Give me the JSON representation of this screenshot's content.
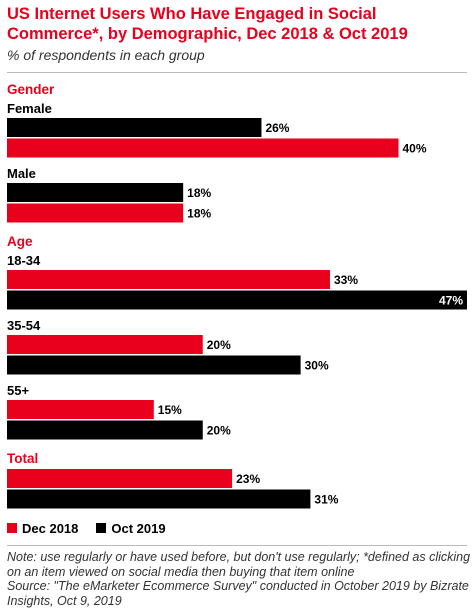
{
  "header": {
    "title": "US Internet Users Who Have Engaged in Social Commerce*, by Demographic, Dec 2018 & Oct 2019",
    "subtitle": "% of respondents in each group"
  },
  "chart_data": {
    "type": "bar",
    "orientation": "horizontal",
    "xlim": [
      0,
      47
    ],
    "grid": false,
    "legend_position": "bottom-left",
    "series": [
      {
        "name": "Dec 2018",
        "color": "#e8001d"
      },
      {
        "name": "Oct 2019",
        "color": "#000000"
      }
    ],
    "groups": [
      {
        "label": "Gender",
        "categories": [
          {
            "label": "Female",
            "bars": [
              {
                "series": "Oct 2019",
                "value": 26,
                "label": "26%"
              },
              {
                "series": "Dec 2018",
                "value": 40,
                "label": "40%"
              }
            ]
          },
          {
            "label": "Male",
            "bars": [
              {
                "series": "Oct 2019",
                "value": 18,
                "label": "18%"
              },
              {
                "series": "Dec 2018",
                "value": 18,
                "label": "18%"
              }
            ]
          }
        ]
      },
      {
        "label": "Age",
        "categories": [
          {
            "label": "18-34",
            "bars": [
              {
                "series": "Dec 2018",
                "value": 33,
                "label": "33%"
              },
              {
                "series": "Oct 2019",
                "value": 47,
                "label": "47%"
              }
            ]
          },
          {
            "label": "35-54",
            "bars": [
              {
                "series": "Dec 2018",
                "value": 20,
                "label": "20%"
              },
              {
                "series": "Oct 2019",
                "value": 30,
                "label": "30%"
              }
            ]
          },
          {
            "label": "55+",
            "bars": [
              {
                "series": "Dec 2018",
                "value": 15,
                "label": "15%"
              },
              {
                "series": "Oct 2019",
                "value": 20,
                "label": "20%"
              }
            ]
          }
        ]
      },
      {
        "label": "Total",
        "categories": [
          {
            "label": "",
            "bars": [
              {
                "series": "Dec 2018",
                "value": 23,
                "label": "23%"
              },
              {
                "series": "Oct 2019",
                "value": 31,
                "label": "31%"
              }
            ]
          }
        ]
      }
    ]
  },
  "legend": {
    "items": [
      {
        "label": "Dec 2018",
        "color": "#e8001d"
      },
      {
        "label": "Oct 2019",
        "color": "#000000"
      }
    ]
  },
  "footer": {
    "note": "Note: use regularly or have used before, but don't use regularly; *defined as clicking on an item viewed on social media then buying that item online",
    "source": "Source: \"The eMarketer Ecommerce Survey\" conducted in October 2019 by Bizrate Insights, Oct 9, 2019"
  }
}
